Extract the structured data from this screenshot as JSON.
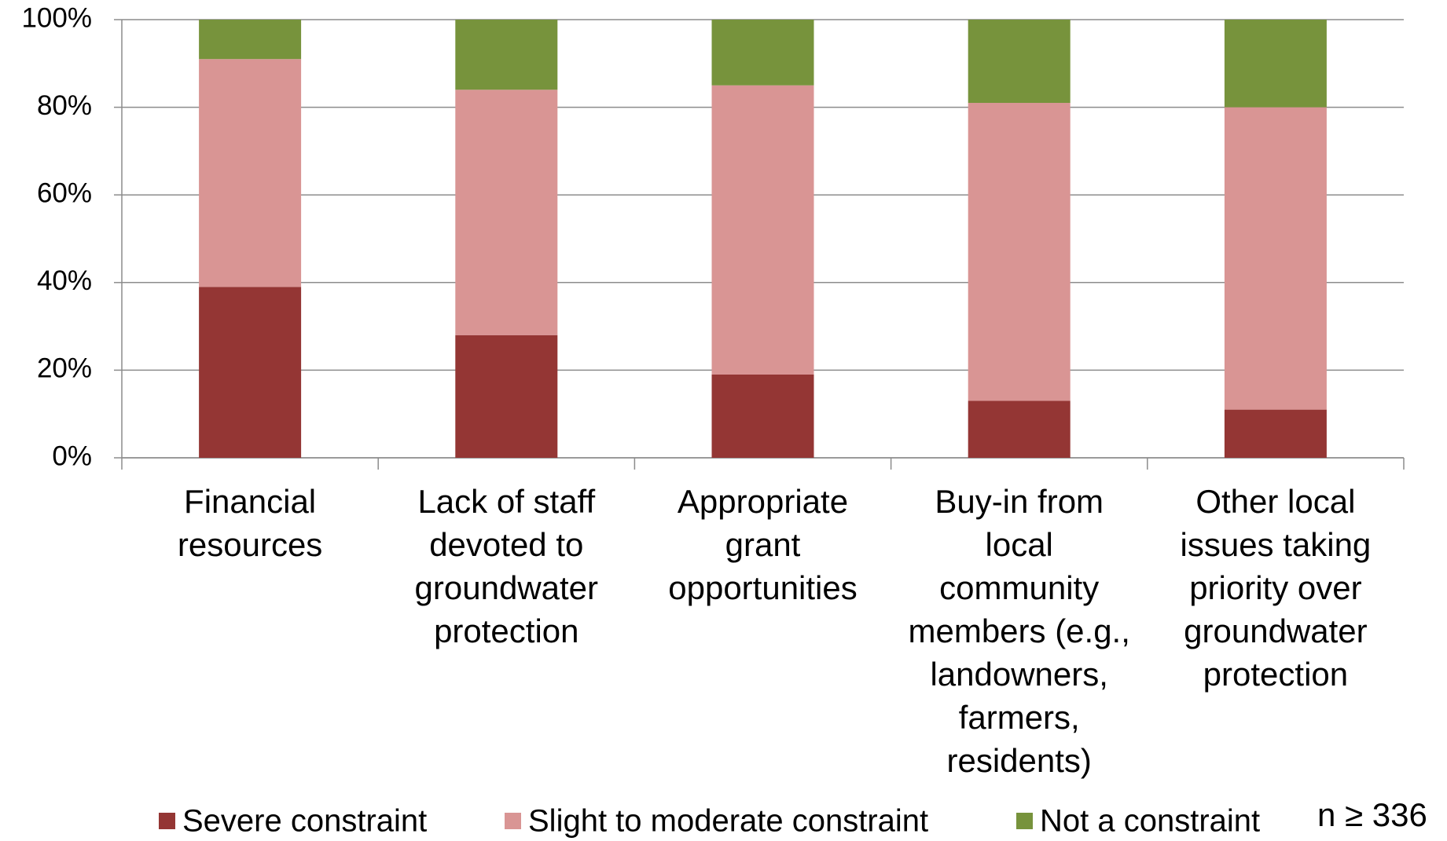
{
  "chart_data": {
    "type": "stacked_bar",
    "categories": [
      "Financial\nresources",
      "Lack of staff\ndevoted to\ngroundwater\nprotection",
      "Appropriate\ngrant\nopportunities",
      "Buy-in from\nlocal\ncommunity\nmembers (e.g.,\nlandowners,\nfarmers,\nresidents)",
      "Other local\nissues taking\npriority over\ngroundwater\nprotection"
    ],
    "series": [
      {
        "name": "Severe constraint",
        "color": "#943634",
        "values": [
          39,
          28,
          19,
          13,
          11
        ]
      },
      {
        "name": "Slight to moderate constraint",
        "color": "#d99594",
        "values": [
          52,
          56,
          66,
          68,
          69
        ]
      },
      {
        "name": "Not a constraint",
        "color": "#77933c",
        "values": [
          9,
          16,
          15,
          19,
          20
        ]
      }
    ],
    "ylim": [
      0,
      100
    ],
    "yticks": [
      {
        "value": 0,
        "label": "0%"
      },
      {
        "value": 20,
        "label": "20%"
      },
      {
        "value": 40,
        "label": "40%"
      },
      {
        "value": 60,
        "label": "60%"
      },
      {
        "value": 80,
        "label": "80%"
      },
      {
        "value": 100,
        "label": "100%"
      }
    ],
    "grid": true,
    "legend": "bottom",
    "annotation": "n ≥ 336"
  }
}
